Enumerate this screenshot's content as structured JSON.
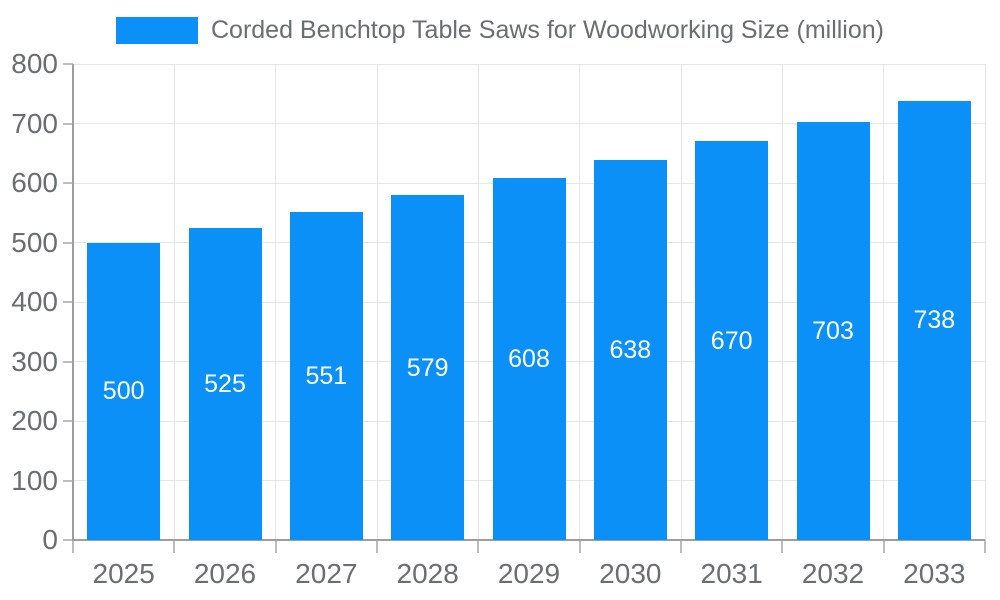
{
  "chart_data": {
    "type": "bar",
    "title": "Corded Benchtop Table Saws for Woodworking Size (million)",
    "categories": [
      "2025",
      "2026",
      "2027",
      "2028",
      "2029",
      "2030",
      "2031",
      "2032",
      "2033"
    ],
    "values": [
      500,
      525,
      551,
      579,
      608,
      638,
      670,
      703,
      738
    ],
    "xlabel": "",
    "ylabel": "",
    "ylim": [
      0,
      800
    ],
    "ytick_step": 100,
    "grid": true,
    "legend_position": "top-center",
    "colors": {
      "bar": "#0b90f8",
      "grid": "#e6e6e6",
      "axis": "#9e9e9e",
      "tick": "#bdbdbd",
      "text": "#6b6e70",
      "bar_label": "#ffffff",
      "background": "#ffffff"
    }
  }
}
